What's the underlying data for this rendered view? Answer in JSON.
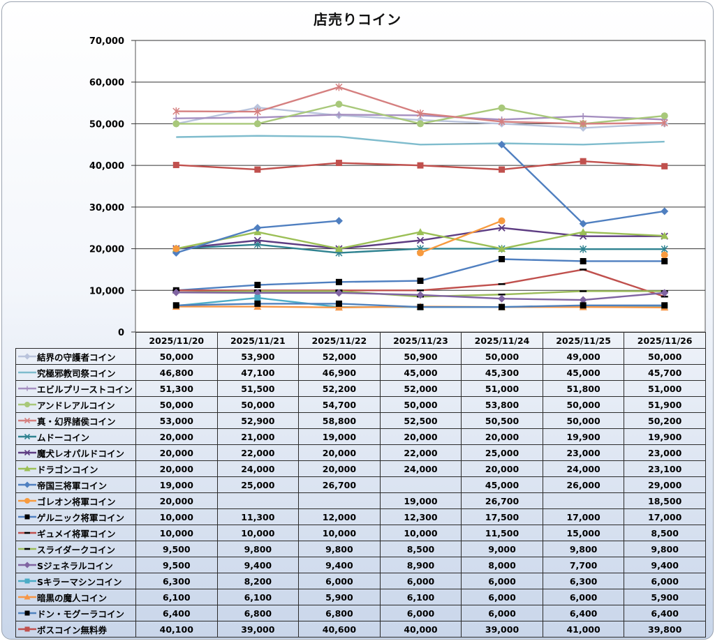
{
  "chart_data": {
    "type": "line",
    "title": "店売りコイン",
    "categories": [
      "2025/11/20",
      "2025/11/21",
      "2025/11/22",
      "2025/11/23",
      "2025/11/24",
      "2025/11/25",
      "2025/11/26"
    ],
    "ylim": [
      0,
      70000
    ],
    "yticks": [
      0,
      10000,
      20000,
      30000,
      40000,
      50000,
      60000,
      70000
    ],
    "ytick_labels": [
      "0",
      "10,000",
      "20,000",
      "30,000",
      "40,000",
      "50,000",
      "60,000",
      "70,000"
    ],
    "grid": true,
    "legend": "table-below",
    "series": [
      {
        "name": "結界の守護者コイン",
        "color": "#b9c3dc",
        "marker": "diamond",
        "values": [
          50000,
          53900,
          52000,
          50900,
          50000,
          49000,
          50000
        ]
      },
      {
        "name": "究極邪教司祭コイン",
        "color": "#7fbccd",
        "marker": "none",
        "values": [
          46800,
          47100,
          46900,
          45000,
          45300,
          45000,
          45700
        ]
      },
      {
        "name": "エビルプリーストコイン",
        "color": "#a58fc0",
        "marker": "plus",
        "values": [
          51300,
          51500,
          52200,
          52000,
          51000,
          51800,
          51000
        ]
      },
      {
        "name": "アンドレアルコイン",
        "color": "#a8c87a",
        "marker": "circle",
        "values": [
          50000,
          50000,
          54700,
          50000,
          53800,
          50000,
          51900
        ]
      },
      {
        "name": "真・幻界諸侯コイン",
        "color": "#d57f7f",
        "marker": "star",
        "values": [
          53000,
          52900,
          58800,
          52500,
          50500,
          50000,
          50200
        ]
      },
      {
        "name": "ムドーコイン",
        "color": "#2e8290",
        "marker": "star",
        "values": [
          20000,
          21000,
          19000,
          20000,
          20000,
          19900,
          19900
        ]
      },
      {
        "name": "魔犬レオパルドコイン",
        "color": "#5d3c82",
        "marker": "x",
        "values": [
          20000,
          22000,
          20000,
          22000,
          25000,
          23000,
          23000
        ]
      },
      {
        "name": "ドラゴンコイン",
        "color": "#9bbf55",
        "marker": "triangle",
        "values": [
          20000,
          24000,
          20000,
          24000,
          20000,
          24000,
          23100
        ]
      },
      {
        "name": "帝国三将軍コイン",
        "color": "#4f7fc0",
        "marker": "diamond",
        "values": [
          19000,
          25000,
          26700,
          null,
          45000,
          26000,
          29000
        ]
      },
      {
        "name": "ゴレオン将軍コイン",
        "color": "#f79a3e",
        "marker": "circle",
        "values": [
          20000,
          null,
          null,
          19000,
          26700,
          null,
          18500
        ]
      },
      {
        "name": "ゲルニック将軍コイン",
        "color": "#4f7fc0",
        "marker": "square",
        "values": [
          10000,
          11300,
          12000,
          12300,
          17500,
          17000,
          17000
        ]
      },
      {
        "name": "ギュメイ将軍コイン",
        "color": "#c0504d",
        "marker": "dash",
        "values": [
          10000,
          10000,
          10000,
          10000,
          11500,
          15000,
          8500
        ]
      },
      {
        "name": "スライダークコイン",
        "color": "#9bbb59",
        "marker": "dash",
        "values": [
          9500,
          9800,
          9800,
          8500,
          9000,
          9800,
          9800
        ]
      },
      {
        "name": "Sジェネラルコイン",
        "color": "#8064a2",
        "marker": "diamond",
        "values": [
          9500,
          9400,
          9400,
          8900,
          8000,
          7700,
          9400
        ]
      },
      {
        "name": "Sキラーマシンコイン",
        "color": "#4bacc6",
        "marker": "square",
        "values": [
          6300,
          8200,
          6000,
          6000,
          6000,
          6300,
          6000
        ]
      },
      {
        "name": "暗黒の魔人コイン",
        "color": "#f79646",
        "marker": "triangle",
        "values": [
          6100,
          6100,
          5900,
          6100,
          6000,
          6000,
          5900
        ]
      },
      {
        "name": "ドン・モグーラコイン",
        "color": "#4f81bd",
        "marker": "square",
        "values": [
          6400,
          6800,
          6800,
          6000,
          6000,
          6400,
          6400
        ]
      },
      {
        "name": "ボスコイン無料券",
        "color": "#c0504d",
        "marker": "square",
        "values": [
          40100,
          39000,
          40600,
          40000,
          39000,
          41000,
          39800
        ]
      }
    ],
    "table_values": [
      [
        "50,000",
        "53,900",
        "52,000",
        "50,900",
        "50,000",
        "49,000",
        "50,000"
      ],
      [
        "46,800",
        "47,100",
        "46,900",
        "45,000",
        "45,300",
        "45,000",
        "45,700"
      ],
      [
        "51,300",
        "51,500",
        "52,200",
        "52,000",
        "51,000",
        "51,800",
        "51,000"
      ],
      [
        "50,000",
        "50,000",
        "54,700",
        "50,000",
        "53,800",
        "50,000",
        "51,900"
      ],
      [
        "53,000",
        "52,900",
        "58,800",
        "52,500",
        "50,500",
        "50,000",
        "50,200"
      ],
      [
        "20,000",
        "21,000",
        "19,000",
        "20,000",
        "20,000",
        "19,900",
        "19,900"
      ],
      [
        "20,000",
        "22,000",
        "20,000",
        "22,000",
        "25,000",
        "23,000",
        "23,000"
      ],
      [
        "20,000",
        "24,000",
        "20,000",
        "24,000",
        "20,000",
        "24,000",
        "23,100"
      ],
      [
        "19,000",
        "25,000",
        "26,700",
        "",
        "45,000",
        "26,000",
        "29,000"
      ],
      [
        "20,000",
        "",
        "",
        "19,000",
        "26,700",
        "",
        "18,500"
      ],
      [
        "10,000",
        "11,300",
        "12,000",
        "12,300",
        "17,500",
        "17,000",
        "17,000"
      ],
      [
        "10,000",
        "10,000",
        "10,000",
        "10,000",
        "11,500",
        "15,000",
        "8,500"
      ],
      [
        "9,500",
        "9,800",
        "9,800",
        "8,500",
        "9,000",
        "9,800",
        "9,800"
      ],
      [
        "9,500",
        "9,400",
        "9,400",
        "8,900",
        "8,000",
        "7,700",
        "9,400"
      ],
      [
        "6,300",
        "8,200",
        "6,000",
        "6,000",
        "6,000",
        "6,300",
        "6,000"
      ],
      [
        "6,100",
        "6,100",
        "5,900",
        "6,100",
        "6,000",
        "6,000",
        "5,900"
      ],
      [
        "6,400",
        "6,800",
        "6,800",
        "6,000",
        "6,000",
        "6,400",
        "6,400"
      ],
      [
        "40,100",
        "39,000",
        "40,600",
        "40,000",
        "39,000",
        "41,000",
        "39,800"
      ]
    ]
  }
}
